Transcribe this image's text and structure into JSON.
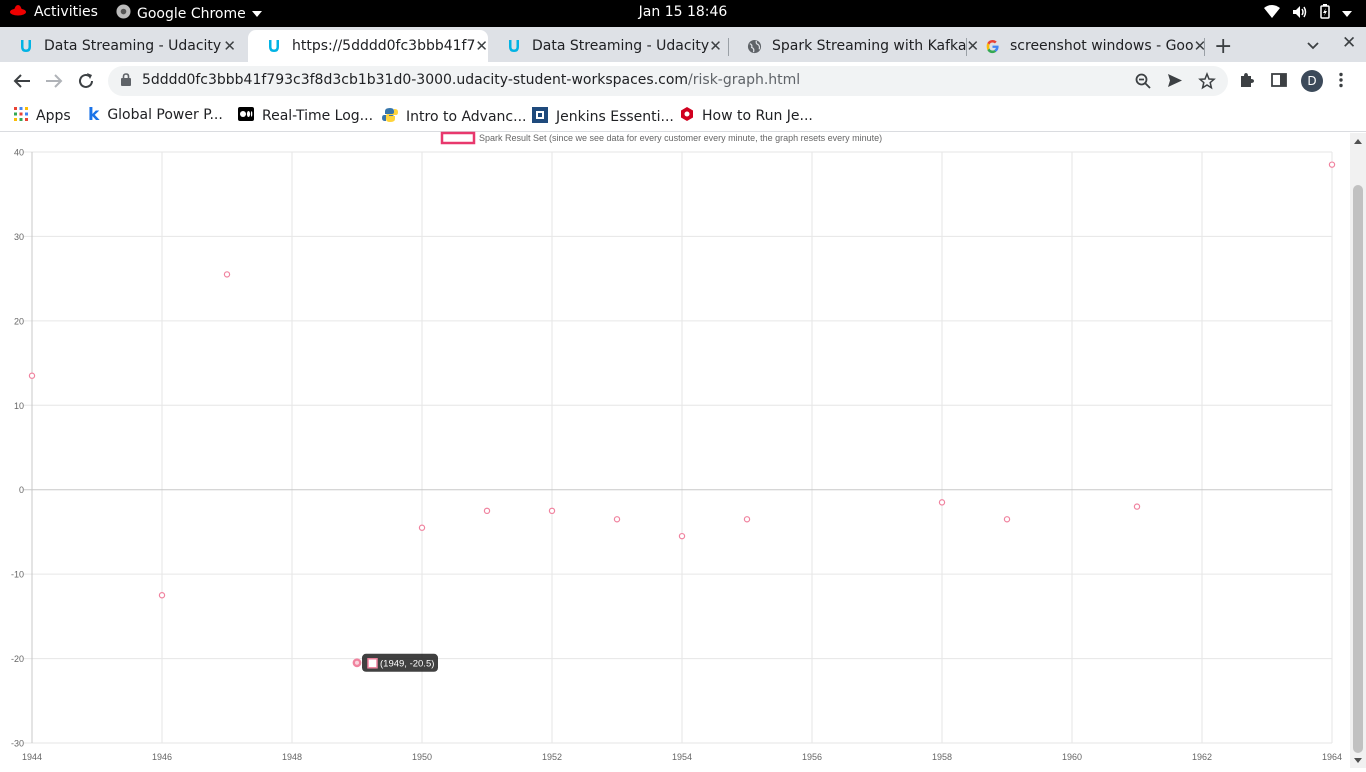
{
  "system_bar": {
    "activities": "Activities",
    "app_name": "Google Chrome",
    "clock": "Jan 15  18:46"
  },
  "tabs": [
    {
      "title": "Data Streaming - Udacity",
      "favicon": "udacity-icon",
      "active": false
    },
    {
      "title": "https://5dddd0fc3bbb41f7",
      "favicon": "udacity-icon",
      "active": true
    },
    {
      "title": "Data Streaming - Udacity",
      "favicon": "udacity-icon",
      "active": false
    },
    {
      "title": "Spark Streaming with Kafka",
      "favicon": "globe-icon",
      "active": false
    },
    {
      "title": "screenshot windows - Goo",
      "favicon": "google-icon",
      "active": false
    }
  ],
  "address_bar": {
    "host": "5dddd0fc3bbb41f793c3f8d3cb1b31d0-3000.udacity-student-workspaces.com",
    "path": "/risk-graph.html"
  },
  "profile_initial": "D",
  "bookmarks": [
    {
      "label": "Apps",
      "icon": "apps-grid-icon"
    },
    {
      "label": "Global Power P...",
      "icon": "k-icon"
    },
    {
      "label": "Real-Time Log...",
      "icon": "medium-icon"
    },
    {
      "label": "Intro to Advanc...",
      "icon": "python-icon"
    },
    {
      "label": "Jenkins Essenti...",
      "icon": "jenkins-icon"
    },
    {
      "label": "How to Run Je...",
      "icon": "redhat-icon"
    }
  ],
  "chart_data": {
    "type": "scatter",
    "legend": "Spark Result Set (since we see data for every customer every minute, the graph resets every minute)",
    "legend_position": "top",
    "xlim": [
      1944,
      1964
    ],
    "ylim": [
      -30,
      40
    ],
    "x_ticks": [
      1944,
      1946,
      1948,
      1950,
      1952,
      1954,
      1956,
      1958,
      1960,
      1962,
      1964
    ],
    "y_ticks": [
      40,
      30,
      20,
      10,
      0,
      -10,
      -20,
      -30
    ],
    "grid": true,
    "point_color": "#f0839f",
    "legend_color": "#e8386d",
    "points": [
      {
        "x": 1944,
        "y": 13.5
      },
      {
        "x": 1946,
        "y": -12.5
      },
      {
        "x": 1947,
        "y": 25.5
      },
      {
        "x": 1949,
        "y": -20.5
      },
      {
        "x": 1950,
        "y": -4.5
      },
      {
        "x": 1951,
        "y": -2.5
      },
      {
        "x": 1952,
        "y": -2.5
      },
      {
        "x": 1953,
        "y": -3.5
      },
      {
        "x": 1954,
        "y": -5.5
      },
      {
        "x": 1955,
        "y": -3.5
      },
      {
        "x": 1958,
        "y": -1.5
      },
      {
        "x": 1959,
        "y": -3.5
      },
      {
        "x": 1961,
        "y": -2
      },
      {
        "x": 1964,
        "y": 38.5
      }
    ],
    "tooltip": {
      "text": "(1949, -20.5)",
      "x": 1949,
      "y": -20.5
    }
  }
}
